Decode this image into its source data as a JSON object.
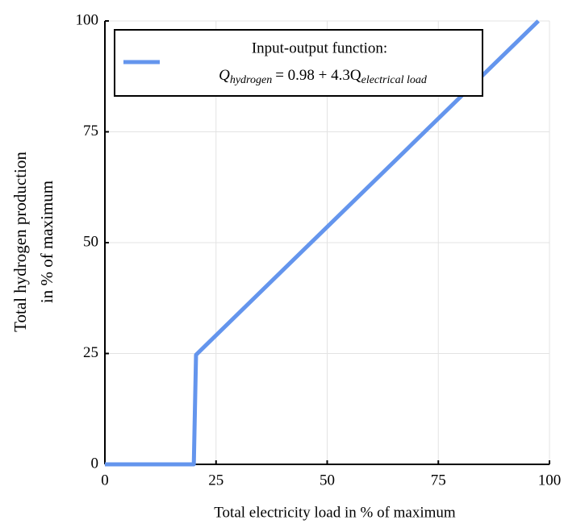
{
  "chart_data": {
    "type": "line",
    "xlabel": "Total electricity load in % of maximum",
    "ylabel": [
      "Total hydrogen production",
      "in % of maximum"
    ],
    "series": [
      {
        "name": "Input-output function:",
        "color": "#6495ed",
        "x": [
          0,
          20,
          20.5,
          97.5
        ],
        "values": [
          0,
          0,
          24.7,
          100
        ]
      }
    ],
    "legend_formula": {
      "lhs": "Q",
      "lhs_sub": "hydrogen",
      "rhs": "= 0.98 + 4.3Q",
      "rhs_sub": "electrical load"
    },
    "xlim": [
      0,
      100
    ],
    "ylim": [
      0,
      100
    ],
    "xticks": [
      0,
      25,
      50,
      75,
      100
    ],
    "yticks": [
      0,
      25,
      50,
      75,
      100
    ],
    "grid": true,
    "legend_position": "top-left"
  }
}
